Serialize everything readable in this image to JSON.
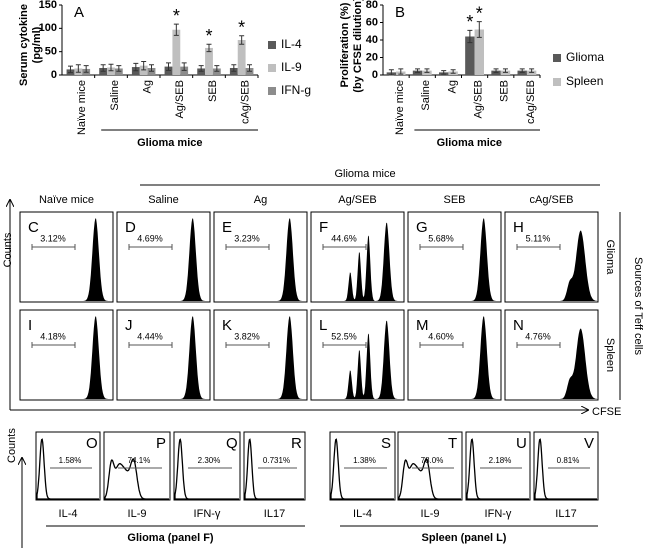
{
  "chart_data": [
    {
      "type": "bar",
      "panel_label": "A",
      "y_label": [
        "Serum cytokine",
        "(pg/ml)"
      ],
      "group_label": "Glioma mice",
      "categories": [
        "Naïve mice",
        "Saline",
        "Ag",
        "Ag/SEB",
        "SEB",
        "cAg/SEB"
      ],
      "series": [
        {
          "name": "IL-4",
          "color": "#595959",
          "values": [
            12,
            15,
            17,
            18,
            14,
            15
          ],
          "errors": [
            7,
            7,
            8,
            8,
            6,
            7
          ]
        },
        {
          "name": "IL-9",
          "color": "#bfbfbf",
          "values": [
            14,
            16,
            20,
            97,
            58,
            75
          ],
          "errors": [
            8,
            7,
            9,
            12,
            8,
            9
          ]
        },
        {
          "name": "IFN-g",
          "color": "#8c8c8c",
          "values": [
            13,
            14,
            15,
            18,
            14,
            15
          ],
          "errors": [
            7,
            6,
            7,
            8,
            6,
            7
          ]
        }
      ],
      "ylim": [
        0,
        150
      ],
      "yticks": [
        0,
        50,
        100,
        150
      ],
      "annotations": [
        {
          "text": "*"
        },
        {
          "text": "*"
        },
        {
          "text": "*"
        }
      ]
    },
    {
      "type": "bar",
      "panel_label": "B",
      "y_label": [
        "Proliferation (%)",
        "(by CFSE dilution)"
      ],
      "group_label": "Glioma mice",
      "categories": [
        "Naïve mice",
        "Saline",
        "Ag",
        "Ag/SEB",
        "SEB",
        "cAg/SEB"
      ],
      "series": [
        {
          "name": "Glioma",
          "color": "#595959",
          "values": [
            3,
            5,
            3,
            44,
            5,
            5
          ],
          "errors": [
            3,
            2,
            2,
            7,
            2,
            2
          ]
        },
        {
          "name": "Spleen",
          "color": "#bfbfbf",
          "values": [
            4,
            5,
            4,
            52,
            5,
            5
          ],
          "errors": [
            3,
            2,
            2,
            9,
            2,
            2
          ]
        }
      ],
      "ylim": [
        0,
        80
      ],
      "yticks": [
        0,
        20,
        40,
        60,
        80
      ],
      "annotations": [
        {
          "text": "*"
        },
        {
          "text": "*"
        }
      ]
    }
  ],
  "flow": {
    "header": "Glioma mice",
    "columns": [
      "Naïve mice",
      "Saline",
      "Ag",
      "Ag/SEB",
      "SEB",
      "cAg/SEB"
    ],
    "rows": [
      {
        "label": "Glioma",
        "panels": [
          {
            "letter": "C",
            "percent": "3.12%"
          },
          {
            "letter": "D",
            "percent": "4.69%"
          },
          {
            "letter": "E",
            "percent": "3.23%"
          },
          {
            "letter": "F",
            "percent": "44.6%"
          },
          {
            "letter": "G",
            "percent": "5.68%"
          },
          {
            "letter": "H",
            "percent": "5.11%"
          }
        ]
      },
      {
        "label": "Spleen",
        "panels": [
          {
            "letter": "I",
            "percent": "4.18%"
          },
          {
            "letter": "J",
            "percent": "4.44%"
          },
          {
            "letter": "K",
            "percent": "3.82%"
          },
          {
            "letter": "L",
            "percent": "52.5%"
          },
          {
            "letter": "M",
            "percent": "4.60%"
          },
          {
            "letter": "N",
            "percent": "4.76%"
          }
        ]
      }
    ],
    "side_label": "Sources of Teff cells",
    "y_axis": "Counts",
    "x_axis": "CFSE"
  },
  "cytokine_flow": {
    "y_axis": "Counts",
    "groups": [
      {
        "label": "Glioma (panel F)",
        "panels": [
          {
            "letter": "O",
            "percent": "1.58%",
            "marker": "IL-4"
          },
          {
            "letter": "P",
            "percent": "74.1%",
            "marker": "IL-9"
          },
          {
            "letter": "Q",
            "percent": "2.30%",
            "marker": "IFN-γ"
          },
          {
            "letter": "R",
            "percent": "0.731%",
            "marker": "IL17"
          }
        ]
      },
      {
        "label": "Spleen (panel L)",
        "panels": [
          {
            "letter": "S",
            "percent": "1.38%",
            "marker": "IL-4"
          },
          {
            "letter": "T",
            "percent": "78.0%",
            "marker": "IL-9"
          },
          {
            "letter": "U",
            "percent": "2.18%",
            "marker": "IFN-γ"
          },
          {
            "letter": "V",
            "percent": "0.81%",
            "marker": "IL17"
          }
        ]
      }
    ]
  }
}
